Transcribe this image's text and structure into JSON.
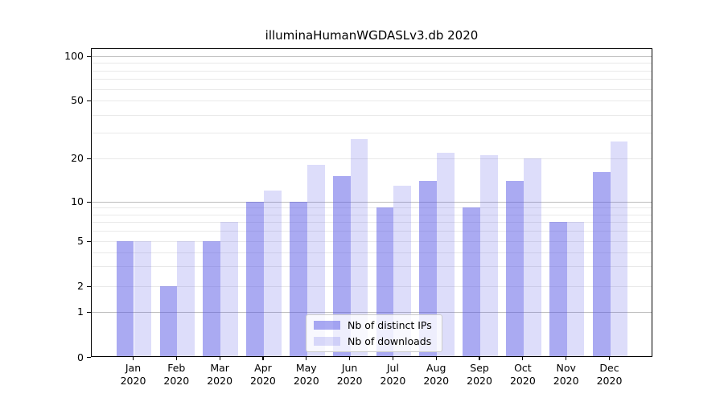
{
  "title": "illuminaHumanWGDASLv3.db 2020",
  "chart_data": {
    "type": "bar",
    "title": "illuminaHumanWGDASLv3.db 2020",
    "months": [
      "Jan",
      "Feb",
      "Mar",
      "Apr",
      "May",
      "Jun",
      "Jul",
      "Aug",
      "Sep",
      "Oct",
      "Nov",
      "Dec"
    ],
    "year": "2020",
    "categories": [
      "Jan 2020",
      "Feb 2020",
      "Mar 2020",
      "Apr 2020",
      "May 2020",
      "Jun 2020",
      "Jul 2020",
      "Aug 2020",
      "Sep 2020",
      "Oct 2020",
      "Nov 2020",
      "Dec 2020"
    ],
    "series": [
      {
        "name": "Nb of distinct IPs",
        "color": "rgba(85,85,230,0.5)",
        "color_hex_on_white": "#aaaaf4",
        "values": [
          5,
          2,
          5,
          10,
          10,
          15,
          9,
          14,
          9,
          14,
          7,
          16
        ]
      },
      {
        "name": "Nb of downloads",
        "color": "rgba(85,85,230,0.2)",
        "color_hex_on_white": "#dcdcf9",
        "values": [
          5,
          5,
          7,
          12,
          18,
          27,
          13,
          22,
          21,
          20,
          7,
          26
        ]
      }
    ],
    "yticks": [
      0,
      1,
      2,
      5,
      10,
      20,
      50,
      100
    ],
    "ylim": [
      0,
      100
    ],
    "yscale": "log-like",
    "xlabel": "",
    "ylabel": "",
    "grid": true,
    "legend_position": "inside-lower-center"
  }
}
